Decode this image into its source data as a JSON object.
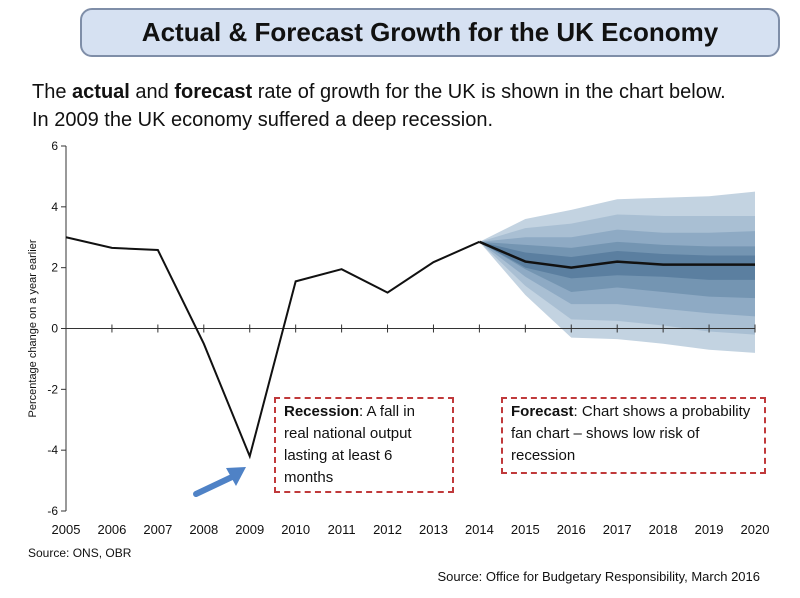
{
  "title": "Actual & Forecast Growth for the UK Economy",
  "intro": {
    "line1_pre": "The ",
    "line1_b1": "actual",
    "line1_mid": " and ",
    "line1_b2": "forecast",
    "line1_post": " rate of growth for the UK is shown in the chart below.",
    "line2": "In 2009 the UK economy suffered a deep recession."
  },
  "callouts": {
    "recession_title": "Recession",
    "recession_text": ": A fall in real national output lasting at least 6 months",
    "forecast_title": "Forecast",
    "forecast_text": ": Chart shows a probability fan chart – shows low risk of recession"
  },
  "source_left": "Source: ONS, OBR",
  "source_right": "Source: Office for Budgetary Responsibility, March 2016",
  "colors": {
    "line": "#111111",
    "fan_bands": [
      "#c3d3e1",
      "#a9bfd3",
      "#8eaac4",
      "#7495b2",
      "#5b7fa0"
    ],
    "callout_border": "#c0393b",
    "arrow": "#4f82c6",
    "title_bg": "#d6e1f2"
  },
  "chart_data": {
    "type": "line",
    "ylabel": "Percentage change on a year earlier",
    "xlabel": "",
    "ylim": [
      -6,
      6
    ],
    "yticks": [
      "6",
      "4",
      "2",
      "0",
      "-2",
      "-4",
      "-6"
    ],
    "x": [
      "2005",
      "2006",
      "2007",
      "2008",
      "2009",
      "2010",
      "2011",
      "2012",
      "2013",
      "2014",
      "2015",
      "2016",
      "2017",
      "2018",
      "2019",
      "2020"
    ],
    "actual": {
      "x": [
        2005,
        2006,
        2007,
        2008,
        2009,
        2010,
        2011,
        2012,
        2013,
        2014
      ],
      "y": [
        3.0,
        2.65,
        2.58,
        -0.5,
        -4.2,
        1.55,
        1.95,
        1.18,
        2.18,
        2.85
      ]
    },
    "forecast": {
      "x": [
        2014,
        2015,
        2016,
        2017,
        2018,
        2019,
        2020
      ],
      "y": [
        2.85,
        2.2,
        2.0,
        2.2,
        2.1,
        2.1,
        2.1
      ]
    },
    "fan_bands": [
      {
        "upper": [
          2.85,
          3.6,
          3.9,
          4.25,
          4.3,
          4.35,
          4.5
        ],
        "lower": [
          2.85,
          1.1,
          -0.3,
          -0.35,
          -0.5,
          -0.7,
          -0.8
        ]
      },
      {
        "upper": [
          2.85,
          3.3,
          3.45,
          3.75,
          3.7,
          3.7,
          3.7
        ],
        "lower": [
          2.85,
          1.4,
          0.3,
          0.25,
          0.1,
          -0.1,
          -0.2
        ]
      },
      {
        "upper": [
          2.85,
          3.0,
          3.0,
          3.25,
          3.15,
          3.15,
          3.2
        ],
        "lower": [
          2.85,
          1.7,
          0.8,
          0.8,
          0.65,
          0.5,
          0.4
        ]
      },
      {
        "upper": [
          2.85,
          2.75,
          2.65,
          2.85,
          2.75,
          2.7,
          2.7
        ],
        "lower": [
          2.85,
          1.95,
          1.2,
          1.35,
          1.2,
          1.05,
          1.0
        ]
      },
      {
        "upper": [
          2.85,
          2.5,
          2.35,
          2.55,
          2.45,
          2.4,
          2.4
        ],
        "lower": [
          2.85,
          2.0,
          1.65,
          1.75,
          1.7,
          1.6,
          1.6
        ]
      }
    ]
  }
}
